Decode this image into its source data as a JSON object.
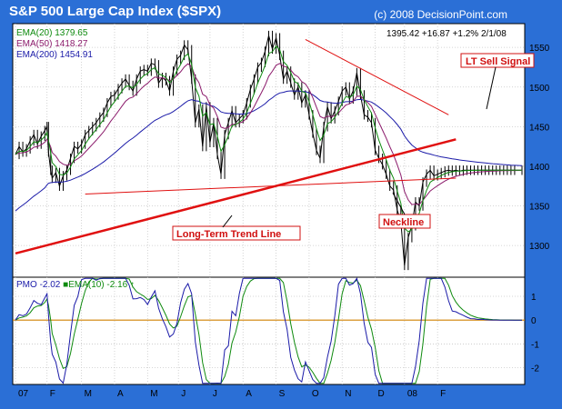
{
  "chart_data": [
    {
      "type": "line",
      "title": "S&P 500 Large Cap Index ($SPX)",
      "source": "(c) 2008 DecisionPoint.com",
      "price_readout": "1395.42  +16.87  +1.2%  2/1/08",
      "ylim": [
        1260,
        1580
      ],
      "y_ticks": [
        "1300",
        "1350",
        "1400",
        "1450",
        "1500",
        "1550"
      ],
      "x_ticks": [
        "07",
        "F",
        "M",
        "A",
        "M",
        "J",
        "J",
        "A",
        "S",
        "O",
        "N",
        "D",
        "08",
        "F"
      ],
      "grid": true,
      "legend": [
        {
          "label": "EMA(20)",
          "value": "1379.65",
          "color": "#0e8a0e"
        },
        {
          "label": "EMA(50)",
          "value": "1418.27",
          "color": "#8b1a6b"
        },
        {
          "label": "EMA(200)",
          "value": "1454.91",
          "color": "#1a1aa8"
        }
      ],
      "series": [
        {
          "name": "S&P 500 Large Cap Index ($SPX)",
          "color": "#000000",
          "x": [
            0,
            5,
            10,
            15,
            20,
            25,
            30,
            35,
            40,
            43,
            45,
            48,
            50,
            55,
            60,
            65,
            70,
            75,
            80,
            85,
            90,
            95,
            100,
            105,
            110,
            115,
            120,
            125,
            130,
            135,
            140,
            145,
            150,
            155,
            160,
            165,
            170,
            175,
            180,
            185,
            190,
            195,
            200,
            205,
            210,
            215,
            220,
            225,
            230,
            235,
            240,
            245,
            250,
            255,
            260,
            265,
            270,
            275,
            280,
            285,
            290,
            295,
            300,
            305,
            310,
            315,
            320,
            325,
            330,
            335,
            340,
            345,
            350,
            355,
            360,
            365,
            370,
            375,
            380,
            385,
            390,
            395,
            400,
            405,
            410,
            415,
            420,
            425,
            430,
            435,
            440,
            445,
            450,
            455,
            460,
            465,
            470,
            475,
            480,
            485,
            490,
            495,
            500,
            505,
            510,
            515,
            520,
            525,
            530,
            535,
            540,
            545,
            550,
            555,
            560,
            565,
            570,
            575,
            580,
            585,
            590,
            595,
            600,
            605,
            610,
            615,
            620,
            625,
            630,
            635,
            640,
            645,
            650,
            655,
            660,
            665,
            670,
            675,
            680,
            690
          ],
          "values": [
            1415,
            1425,
            1418,
            1422,
            1432,
            1440,
            1428,
            1438,
            1445,
            1450,
            1418,
            1395,
            1385,
            1392,
            1375,
            1388,
            1395,
            1410,
            1425,
            1422,
            1428,
            1440,
            1445,
            1450,
            1455,
            1462,
            1468,
            1480,
            1488,
            1490,
            1498,
            1505,
            1510,
            1502,
            1495,
            1510,
            1520,
            1522,
            1520,
            1530,
            1528,
            1505,
            1512,
            1508,
            1495,
            1520,
            1535,
            1540,
            1553,
            1547,
            1510,
            1455,
            1472,
            1425,
            1475,
            1430,
            1455,
            1415,
            1390,
            1440,
            1455,
            1470,
            1455,
            1460,
            1465,
            1480,
            1497,
            1510,
            1525,
            1531,
            1545,
            1565,
            1548,
            1562,
            1540,
            1510,
            1520,
            1505,
            1490,
            1500,
            1480,
            1490,
            1465,
            1442,
            1420,
            1410,
            1450,
            1475,
            1460,
            1470,
            1482,
            1495,
            1500,
            1485,
            1495,
            1518,
            1490,
            1465,
            1462,
            1455,
            1420,
            1410,
            1402,
            1390,
            1375,
            1370,
            1345,
            1330,
            1275,
            1310,
            1325,
            1355,
            1350,
            1380,
            1390,
            1395,
            1388,
            1390,
            1392,
            1394,
            1395,
            1394,
            1395,
            1394,
            1395,
            1395,
            1395,
            1395,
            1395,
            1395,
            1395,
            1395,
            1395,
            1395,
            1395,
            1395,
            1395,
            1395,
            1395,
            1395
          ]
        },
        {
          "name": "EMA(20)",
          "color": "#0e8a0e",
          "derived": "ema20"
        },
        {
          "name": "EMA(50)",
          "color": "#8b1a6b",
          "derived": "ema50"
        },
        {
          "name": "EMA(200)",
          "color": "#1a1aa8",
          "derived": "ema200"
        }
      ],
      "trendlines": [
        {
          "label": "Long-Term Trend Line",
          "from": [
            0,
            1290
          ],
          "to": [
            600,
            1434
          ],
          "color": "#e01010"
        },
        {
          "label": "Neckline",
          "from": [
            95,
            1365
          ],
          "to": [
            600,
            1385
          ],
          "color": "#e01010"
        },
        {
          "label": "LT Sell Signal",
          "from": [
            395,
            1560
          ],
          "to": [
            590,
            1465
          ],
          "color": "#e01010"
        }
      ],
      "annotations": [
        "LT Sell Signal",
        "Neckline",
        "Long-Term Trend Line"
      ]
    },
    {
      "type": "line",
      "title": "",
      "ylim": [
        -2.7,
        1.8
      ],
      "y_ticks": [
        "-2",
        "-1",
        "0",
        "1"
      ],
      "zero_line_color": "#d08000",
      "legend": [
        {
          "label": "PMO",
          "value": "-2.02",
          "color": "#1a1aa8"
        },
        {
          "label": "EMA(10)",
          "value": "-2.16",
          "color": "#0e8a0e"
        }
      ],
      "series": [
        {
          "name": "PMO",
          "color": "#1a1aa8",
          "derived": "pmo"
        },
        {
          "name": "EMA(10)",
          "color": "#0e8a0e",
          "derived": "pmo_signal"
        }
      ]
    }
  ]
}
